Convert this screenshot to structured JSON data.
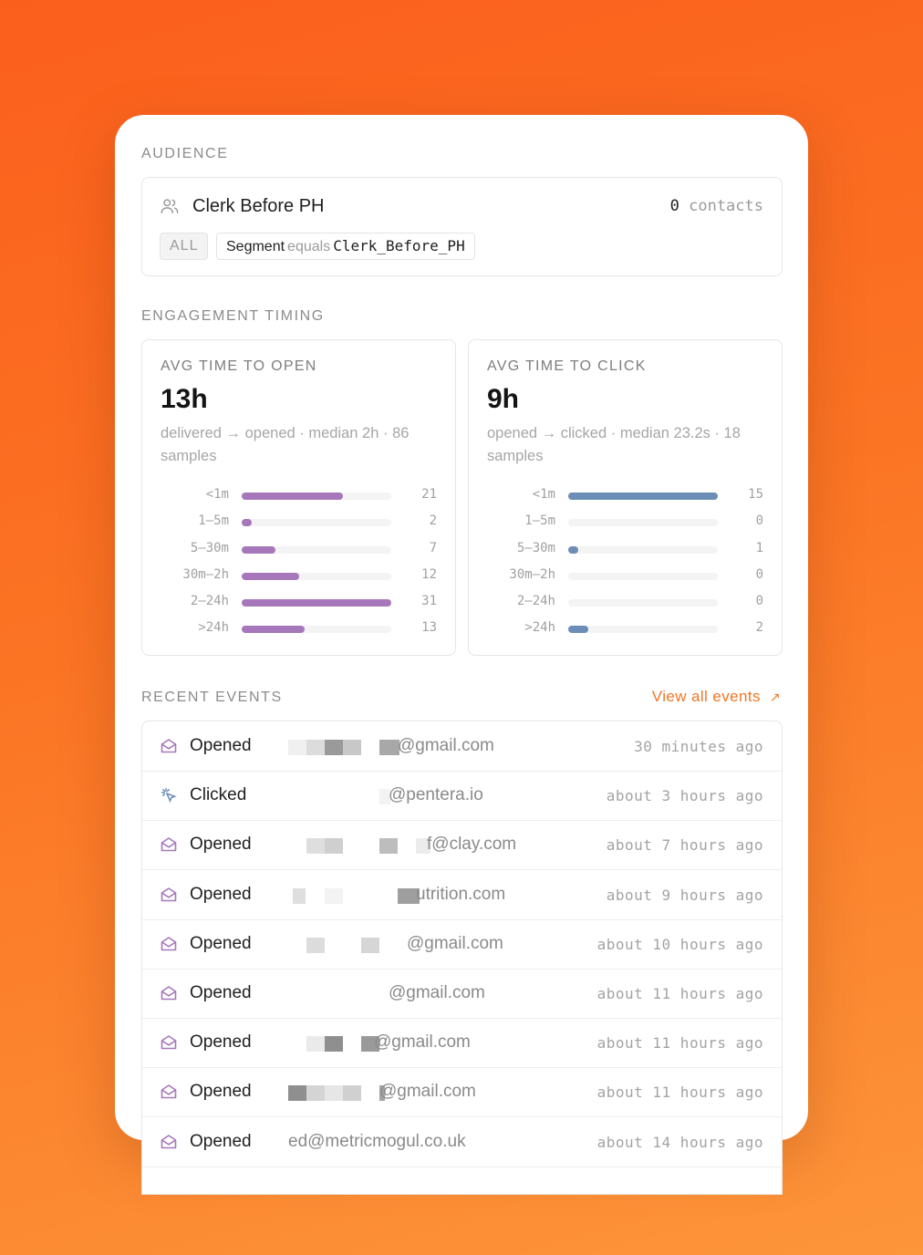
{
  "audience": {
    "section_label": "AUDIENCE",
    "name": "Clerk Before PH",
    "count": "0",
    "count_unit": "contacts",
    "match_chip": "ALL",
    "filter": {
      "field": "Segment",
      "operator": "equals",
      "value": "Clerk_Before_PH"
    }
  },
  "timing": {
    "section_label": "ENGAGEMENT TIMING",
    "open": {
      "title": "AVG TIME TO OPEN",
      "value": "13h",
      "subtitle": "delivered → opened · median 2h · 86 samples",
      "color": "#a678bb",
      "max": 31,
      "buckets": [
        {
          "label": "<1m",
          "count": "21"
        },
        {
          "label": "1–5m",
          "count": "2"
        },
        {
          "label": "5–30m",
          "count": "7"
        },
        {
          "label": "30m–2h",
          "count": "12"
        },
        {
          "label": "2–24h",
          "count": "31"
        },
        {
          "label": ">24h",
          "count": "13"
        }
      ]
    },
    "click": {
      "title": "AVG TIME TO CLICK",
      "value": "9h",
      "subtitle": "opened → clicked · median 23.2s · 18 samples",
      "color": "#6c8db5",
      "max": 15,
      "buckets": [
        {
          "label": "<1m",
          "count": "15"
        },
        {
          "label": "1–5m",
          "count": "0"
        },
        {
          "label": "5–30m",
          "count": "1"
        },
        {
          "label": "30m–2h",
          "count": "0"
        },
        {
          "label": "2–24h",
          "count": "0"
        },
        {
          "label": ">24h",
          "count": "2"
        }
      ]
    }
  },
  "events": {
    "section_label": "RECENT EVENTS",
    "view_all": "View all events",
    "items": [
      {
        "type": "Opened",
        "email": "@gmail.com",
        "time": "30 minutes ago",
        "icon": "envelope-open-icon"
      },
      {
        "type": "Clicked",
        "email": "@pentera.io",
        "time": "about 3 hours ago",
        "icon": "cursor-click-icon"
      },
      {
        "type": "Opened",
        "email": "f@clay.com",
        "time": "about 7 hours ago",
        "icon": "envelope-open-icon"
      },
      {
        "type": "Opened",
        "email": "utrition.com",
        "time": "about 9 hours ago",
        "icon": "envelope-open-icon"
      },
      {
        "type": "Opened",
        "email": "@gmail.com",
        "time": "about 10 hours ago",
        "icon": "envelope-open-icon"
      },
      {
        "type": "Opened",
        "email": "@gmail.com",
        "time": "about 11 hours ago",
        "icon": "envelope-open-icon"
      },
      {
        "type": "Opened",
        "email": "@gmail.com",
        "time": "about 11 hours ago",
        "icon": "envelope-open-icon"
      },
      {
        "type": "Opened",
        "email": "@gmail.com",
        "time": "about 11 hours ago",
        "icon": "envelope-open-icon"
      },
      {
        "type": "Opened",
        "email": "ed@metricmogul.co.uk",
        "time": "about 14 hours ago",
        "icon": "envelope-open-icon"
      }
    ]
  }
}
